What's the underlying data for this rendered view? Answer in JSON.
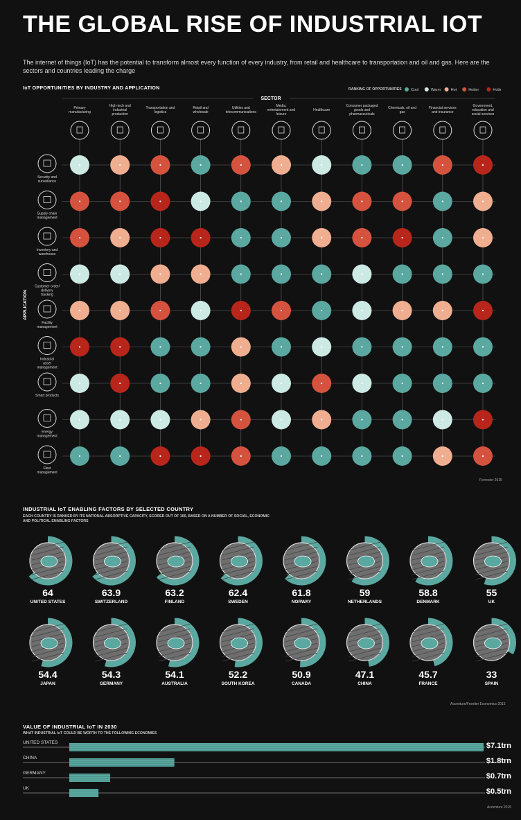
{
  "title": "THE GLOBAL RISE OF INDUSTRIAL IOT",
  "intro": "The internet of things (IoT) has the potential to transform almost every function of every industry, from retail and healthcare to transportation and oil and gas. Here are the sectors and countries leading the charge",
  "matrix": {
    "heading": "IoT OPPORTUNITIES BY INDUSTRY AND APPLICATION",
    "sector_label": "SECTOR",
    "application_label": "APPLICATION",
    "legend_title": "RANKING OF OPPORTUNITIES",
    "legend": [
      {
        "label": "Cool",
        "color": "#5aa8a0"
      },
      {
        "label": "Warm",
        "color": "#cde9e4"
      },
      {
        "label": "Hot",
        "color": "#f0ae91"
      },
      {
        "label": "Hotter",
        "color": "#d5533e"
      },
      {
        "label": "Hottest",
        "color": "#b8261b"
      }
    ],
    "sectors": [
      "Primary manufacturing",
      "High-tech and industrial production",
      "Transportation and logistics",
      "Retail and wholesale",
      "Utilities and telecommunications",
      "Media, entertainment and leisure",
      "Healthcare",
      "Consumer packaged goods and pharmaceuticals",
      "Chemicals, oil and gas",
      "Financial services and insurance",
      "Government, education and social services"
    ],
    "sector_icons": [
      "tools-icon",
      "factory-robot-icon",
      "bus-icon",
      "shop-icon",
      "telecom-tower-icon",
      "headphones-icon",
      "heart-icon",
      "pill-icon",
      "oil-rig-icon",
      "money-bag-icon",
      "government-building-icon"
    ],
    "applications": [
      "Security and surveillance",
      "Supply chain management",
      "Inventory and warehouse",
      "Customer order/ delivery tracking",
      "Facility management",
      "Industrial asset management",
      "Smart products",
      "Energy management",
      "Fleet management"
    ],
    "application_icons": [
      "camera-icon",
      "globe-icon",
      "warehouse-icon",
      "order-screen-icon",
      "monitor-icon",
      "factory-icon",
      "cloud-product-icon",
      "energy-plug-icon",
      "location-pin-icon"
    ],
    "ratings": [
      [
        "Warm",
        "Hot",
        "Hotter",
        "Cool",
        "Hotter",
        "Hot",
        "Warm",
        "Cool",
        "Cool",
        "Hotter",
        "Hottest"
      ],
      [
        "Hotter",
        "Hotter",
        "Hottest",
        "Warm",
        "Cool",
        "Cool",
        "Hot",
        "Hotter",
        "Hotter",
        "Cool",
        "Hot"
      ],
      [
        "Hotter",
        "Hot",
        "Hottest",
        "Hottest",
        "Cool",
        "Cool",
        "Hot",
        "Hotter",
        "Hottest",
        "Cool",
        "Hot"
      ],
      [
        "Warm",
        "Warm",
        "Hot",
        "Hot",
        "Cool",
        "Cool",
        "Cool",
        "Warm",
        "Cool",
        "Cool",
        "Cool"
      ],
      [
        "Hot",
        "Hot",
        "Hotter",
        "Warm",
        "Hottest",
        "Hotter",
        "Cool",
        "Warm",
        "Hot",
        "Hot",
        "Hottest"
      ],
      [
        "Hottest",
        "Hottest",
        "Cool",
        "Cool",
        "Hot",
        "Cool",
        "Warm",
        "Cool",
        "Cool",
        "Cool",
        "Cool"
      ],
      [
        "Warm",
        "Hottest",
        "Cool",
        "Cool",
        "Hot",
        "Warm",
        "Hotter",
        "Warm",
        "Cool",
        "Cool",
        "Cool"
      ],
      [
        "Warm",
        "Warm",
        "Warm",
        "Hot",
        "Hotter",
        "Warm",
        "Hot",
        "Cool",
        "Cool",
        "Warm",
        "Hottest"
      ],
      [
        "Cool",
        "Cool",
        "Hottest",
        "Hottest",
        "Hotter",
        "Cool",
        "Cool",
        "Cool",
        "Cool",
        "Hot",
        "Hotter"
      ]
    ],
    "source": "Forrester 2015"
  },
  "countries_section": {
    "heading": "INDUSTRIAL IoT ENABLING FACTORS BY SELECTED COUNTRY",
    "subheading_line1": "EACH COUNTRY IS RANKED BY ITS NATIONAL ABSORPTIVE CAPACITY, SCORED OUT OF 100, BASED ON A NUMBER OF SOCIAL, ECONOMIC",
    "subheading_line2": "AND POLITICAL ENABLING FACTORS",
    "source": "Accenture/Frontier Economics 2015"
  },
  "countries_section_2": {
    "heading": "VALUE OF INDUSTRIAL IoT IN 2030",
    "subheading": "WHAT INDUSTRIAL IoT COULD BE WORTH TO THE FOLLOWING ECONOMIES",
    "source": "Accenture 2015"
  },
  "chart_data": [
    {
      "type": "scatter",
      "title": "IoT OPPORTUNITIES BY INDUSTRY AND APPLICATION",
      "xlabel": "SECTOR",
      "ylabel": "APPLICATION",
      "note": "Categorical matrix; see matrix.ratings"
    },
    {
      "type": "pie",
      "title": "INDUSTRIAL IoT ENABLING FACTORS BY SELECTED COUNTRY",
      "max": 100,
      "categories": [
        "UNITED STATES",
        "SWITZERLAND",
        "FINLAND",
        "SWEDEN",
        "NORWAY",
        "NETHERLANDS",
        "DENMARK",
        "UK",
        "JAPAN",
        "GERMANY",
        "AUSTRALIA",
        "SOUTH KOREA",
        "CANADA",
        "CHINA",
        "FRANCE",
        "SPAIN"
      ],
      "labels": [
        "64",
        "63.9",
        "63.2",
        "62.4",
        "61.8",
        "59",
        "58.8",
        "55",
        "54.4",
        "54.3",
        "54.1",
        "52.2",
        "50.9",
        "47.1",
        "45.7",
        "33"
      ],
      "values": [
        64,
        63.9,
        63.2,
        62.4,
        61.8,
        59,
        58.8,
        55,
        54.4,
        54.3,
        54.1,
        52.2,
        50.9,
        47.1,
        45.7,
        33
      ]
    },
    {
      "type": "bar",
      "title": "VALUE OF INDUSTRIAL IoT IN 2030",
      "categories": [
        "UNITED STATES",
        "CHINA",
        "GERMANY",
        "UK"
      ],
      "values": [
        7.1,
        1.8,
        0.7,
        0.5
      ],
      "value_labels": [
        "$7.1trn",
        "$1.8trn",
        "$0.7trn",
        "$0.5trn"
      ],
      "xlim": [
        0,
        7.1
      ]
    }
  ]
}
